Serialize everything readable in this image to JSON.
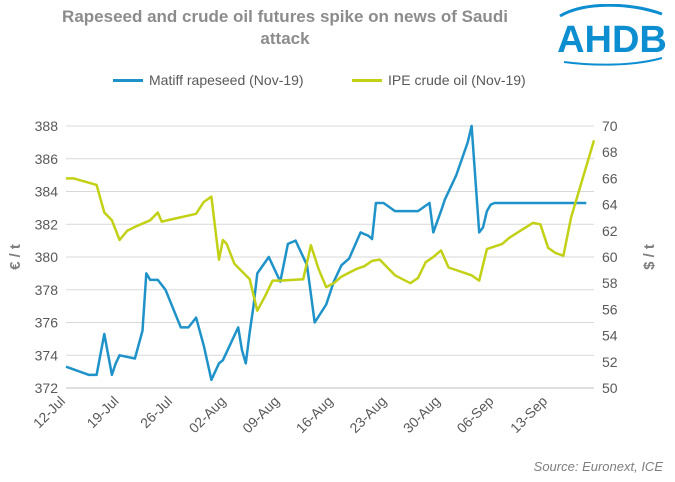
{
  "header": {
    "title_line1": "Rapeseed and crude oil futures spike on news of Saudi",
    "title_line2": "attack",
    "logo_text": "AHDB"
  },
  "source": "Source: Euronext, ICE",
  "colors": {
    "rapeseed": "#1f93c9",
    "crude": "#c2d116",
    "grid": "#d9d9d9",
    "logo": "#0d8ed1"
  },
  "chart_data": {
    "type": "line",
    "legend_position": "top",
    "xlabel": "",
    "ylabel_left": "€ / t",
    "ylabel_right": "$ / t",
    "ylim_left": [
      372,
      388
    ],
    "ylim_right": [
      50,
      70
    ],
    "yticks_left": [
      "372",
      "374",
      "376",
      "378",
      "380",
      "382",
      "384",
      "386",
      "388"
    ],
    "yticks_right": [
      "50",
      "52",
      "54",
      "56",
      "58",
      "60",
      "62",
      "64",
      "66",
      "68",
      "70"
    ],
    "xlim": [
      0,
      69
    ],
    "xticks": [
      {
        "day": 0,
        "label": "12-Jul"
      },
      {
        "day": 7,
        "label": "19-Jul"
      },
      {
        "day": 14,
        "label": "26-Jul"
      },
      {
        "day": 21,
        "label": "02-Aug"
      },
      {
        "day": 28,
        "label": "09-Aug"
      },
      {
        "day": 35,
        "label": "16-Aug"
      },
      {
        "day": 42,
        "label": "23-Aug"
      },
      {
        "day": 49,
        "label": "30-Aug"
      },
      {
        "day": 56,
        "label": "06-Sep"
      },
      {
        "day": 63,
        "label": "13-Sep"
      }
    ],
    "series": [
      {
        "name": "Matiff rapeseed (Nov-19)",
        "axis": "left",
        "x": [
          0,
          3,
          4,
          5,
          6,
          6.5,
          7,
          9,
          10,
          10.5,
          11,
          12,
          13,
          15,
          16,
          16.5,
          17,
          18,
          19,
          20,
          20.5,
          22.5,
          23,
          23.5,
          24,
          24.5,
          25,
          26.5,
          27,
          28,
          29,
          30,
          31.5,
          32.5,
          34,
          35,
          36,
          37,
          38.5,
          39,
          39.5,
          40,
          40.5,
          41.5,
          43,
          44.5,
          46,
          47.5,
          48,
          49,
          49.5,
          51,
          52.5,
          53,
          54,
          54.5,
          55,
          55.5,
          56,
          57.5,
          58,
          59,
          60,
          61.5,
          62,
          63,
          64,
          65.5,
          68
        ],
        "values": [
          373.3,
          372.8,
          372.8,
          375.3,
          372.8,
          373.5,
          374.0,
          373.8,
          375.5,
          379.0,
          378.6,
          378.6,
          378.0,
          375.7,
          375.7,
          376.0,
          376.3,
          374.6,
          372.5,
          373.5,
          373.7,
          375.7,
          374.3,
          373.5,
          375.4,
          377.0,
          379.0,
          380.0,
          379.5,
          378.5,
          380.8,
          381.0,
          379.5,
          376.0,
          377.1,
          378.5,
          379.5,
          379.9,
          381.5,
          381.4,
          381.3,
          381.1,
          383.3,
          383.3,
          382.8,
          382.8,
          382.8,
          383.3,
          381.5,
          382.8,
          383.5,
          385.0,
          387.0,
          388.0,
          381.5,
          381.8,
          382.8,
          383.2,
          383.3,
          383.3,
          383.3,
          383.3,
          383.3,
          383.3,
          383.3,
          383.3,
          383.3,
          383.3,
          383.3
        ]
      },
      {
        "name": "IPE crude oil (Nov-19)",
        "axis": "right",
        "x": [
          0,
          1,
          4,
          5,
          6,
          7,
          8,
          9,
          11,
          12,
          12.5,
          14,
          17,
          18,
          19,
          20,
          20.5,
          21,
          22,
          24,
          25,
          26,
          27,
          28,
          31,
          32,
          33,
          34,
          35,
          36,
          38,
          39,
          40,
          41,
          43,
          45,
          46,
          47,
          48,
          49,
          50,
          53,
          54,
          55,
          57,
          58,
          61,
          62,
          63,
          64,
          65,
          66,
          69
        ],
        "values": [
          66.0,
          66.0,
          65.5,
          63.4,
          62.8,
          61.3,
          62.0,
          62.3,
          62.8,
          63.4,
          62.7,
          62.9,
          63.3,
          64.2,
          64.6,
          59.8,
          61.3,
          61.0,
          59.5,
          58.3,
          55.9,
          57.0,
          58.2,
          58.2,
          58.3,
          60.9,
          59.1,
          57.7,
          58.0,
          58.5,
          59.1,
          59.3,
          59.7,
          59.8,
          58.6,
          58.0,
          58.4,
          59.6,
          60.0,
          60.5,
          59.2,
          58.6,
          58.2,
          60.6,
          61.0,
          61.5,
          62.6,
          62.5,
          60.7,
          60.3,
          60.1,
          63.0,
          68.9
        ]
      }
    ]
  }
}
